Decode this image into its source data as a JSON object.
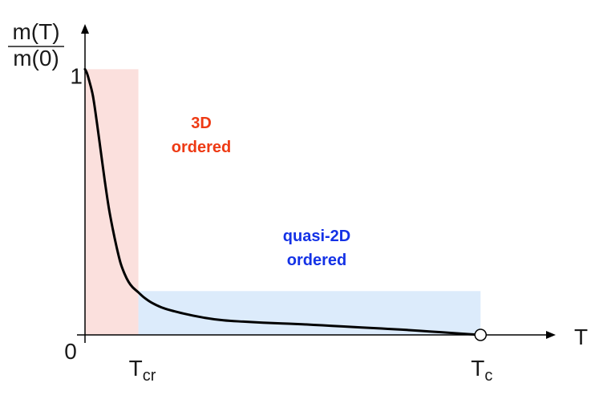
{
  "chart_data": {
    "type": "line",
    "title": "",
    "ylabel": {
      "numerator": "m(T)",
      "denominator": "m(0)"
    },
    "xlabel": "T",
    "y_ticks": [
      {
        "value": 1,
        "label": "1"
      }
    ],
    "x_ticks": [
      {
        "value": 0,
        "label": "0"
      },
      {
        "value": 0.135,
        "label_main": "T",
        "label_sub": "cr"
      },
      {
        "value": 1.0,
        "label_main": "T",
        "label_sub": "c"
      }
    ],
    "xlim": [
      0,
      1.19
    ],
    "ylim": [
      0,
      1.17
    ],
    "grid": false,
    "legend": "none",
    "regions": [
      {
        "name": "3D ordered",
        "label_lines": [
          "3D",
          "ordered"
        ],
        "x_range": [
          0,
          0.135
        ],
        "y_range": [
          0,
          1.0
        ],
        "fill": "#fbe0dd",
        "label_color": "#ee3a14"
      },
      {
        "name": "quasi-2D ordered",
        "label_lines": [
          "quasi-2D",
          "ordered"
        ],
        "x_range": [
          0.135,
          1.0
        ],
        "y_range": [
          0,
          0.165
        ],
        "fill": "#dcebfb",
        "label_color": "#1432e6"
      }
    ],
    "series": [
      {
        "color": "#000000",
        "x": [
          0,
          0.005,
          0.01,
          0.02,
          0.03,
          0.04,
          0.05,
          0.06,
          0.07,
          0.08,
          0.09,
          0.1,
          0.11,
          0.12,
          0.135,
          0.15,
          0.17,
          0.2,
          0.25,
          0.3,
          0.35,
          0.4,
          0.45,
          0.5,
          0.55,
          0.6,
          0.65,
          0.7,
          0.75,
          0.8,
          0.85,
          0.9,
          0.95,
          1.0
        ],
        "y": [
          1.0,
          0.985,
          0.96,
          0.9,
          0.8,
          0.69,
          0.58,
          0.48,
          0.4,
          0.33,
          0.27,
          0.23,
          0.2,
          0.18,
          0.16,
          0.14,
          0.12,
          0.1,
          0.08,
          0.065,
          0.055,
          0.05,
          0.046,
          0.043,
          0.04,
          0.036,
          0.032,
          0.028,
          0.024,
          0.02,
          0.015,
          0.01,
          0.005,
          0.0
        ]
      }
    ],
    "markers": [
      {
        "x": 1.0,
        "y": 0.0,
        "shape": "open-circle"
      }
    ]
  },
  "colors": {
    "axis": "#000000",
    "curve": "#000000"
  }
}
